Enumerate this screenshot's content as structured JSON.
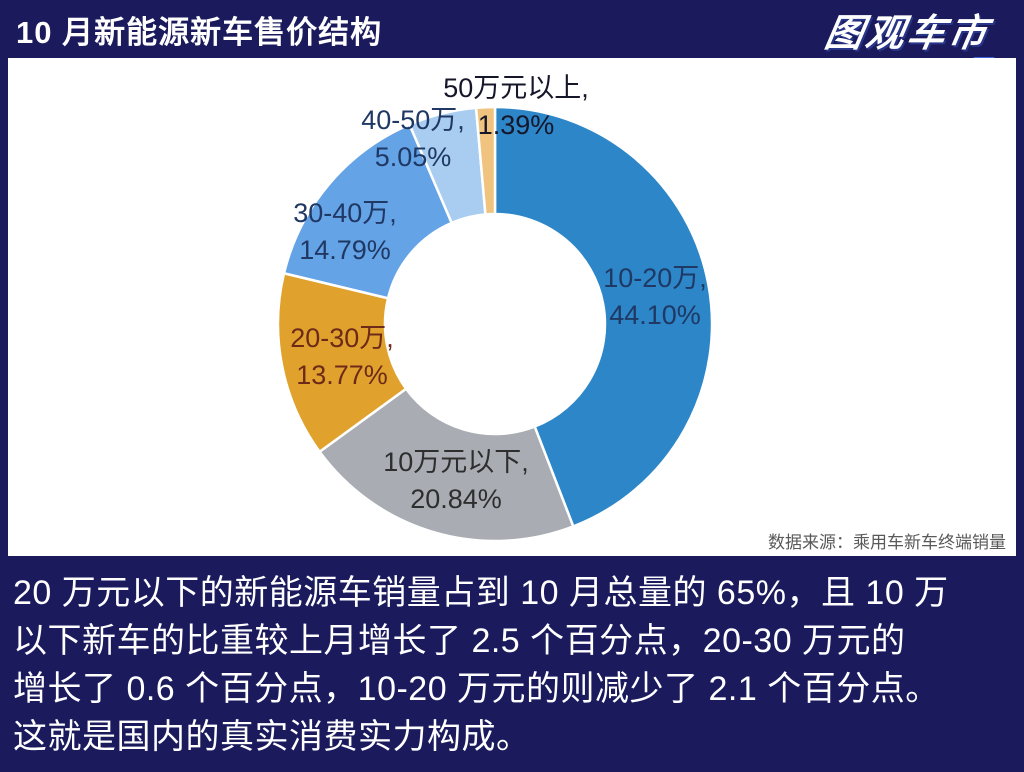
{
  "header": {
    "title": "10 月新能源新车售价结构",
    "logo": "图观车市"
  },
  "chart_data": {
    "type": "pie",
    "subtype": "donut",
    "title": "10 月新能源新车售价结构",
    "categories": [
      "10-20万",
      "10万元以下",
      "20-30万",
      "30-40万",
      "40-50万",
      "50万元以上"
    ],
    "values": [
      44.1,
      20.84,
      13.77,
      14.79,
      5.05,
      1.39
    ],
    "unit": "%",
    "start_angle_deg": 0,
    "direction": "clockwise",
    "legend": "none",
    "label_format": "category, percent",
    "colors": [
      "#2C86C8",
      "#A9ADB3",
      "#E0A22D",
      "#65A3E7",
      "#A8CDF0",
      "#F0C47E"
    ],
    "label_colors": [
      "#1F3864",
      "#2E2E2E",
      "#6E2A19",
      "#1F3864",
      "#1F3864",
      "#16162A"
    ],
    "separator_color": "#FFFFFF"
  },
  "source_note": "数据来源：乘用车新车终端销量",
  "footer": {
    "lines": [
      "20 万元以下的新能源车销量占到 10 月总量的 65%，且 10 万",
      "以下新车的比重较上月增长了 2.5 个百分点，20-30 万元的",
      "增长了 0.6 个百分点，10-20 万元的则减少了 2.1 个百分点。",
      "这就是国内的真实消费实力构成。"
    ]
  }
}
